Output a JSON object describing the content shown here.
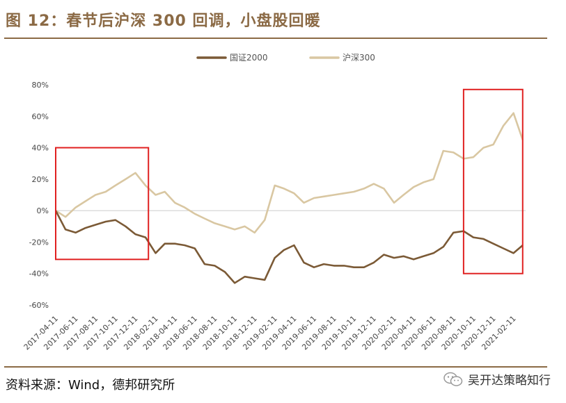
{
  "title": "图 12：春节后沪深 300 回调，小盘股回暖",
  "source": "资料来源：Wind，德邦研究所",
  "watermark": "吴开达策略知行",
  "watermark_icon": "wechat-icon",
  "colors": {
    "title": "#8b6a45",
    "rule": "#8b6a45",
    "gz2000": "#7b5a36",
    "hs300": "#d9c7a2",
    "highlight": "#e02020",
    "zero_line": "#cccccc"
  },
  "chart_data": {
    "type": "line",
    "title": "",
    "xlabel": "",
    "ylabel": "",
    "ylim": [
      -60,
      80
    ],
    "y_ticks": [
      80,
      60,
      40,
      20,
      0,
      -20,
      -40,
      -60
    ],
    "y_tick_labels": [
      "80%",
      "60%",
      "40%",
      "20%",
      "0%",
      "-20%",
      "-40%",
      "-60%"
    ],
    "x_tick_labels": [
      "2017-04-11",
      "2017-06-11",
      "2017-08-11",
      "2017-10-11",
      "2017-12-11",
      "2018-02-11",
      "2018-04-11",
      "2018-06-11",
      "2018-08-11",
      "2018-10-11",
      "2018-12-11",
      "2019-02-11",
      "2019-04-11",
      "2019-06-11",
      "2019-08-11",
      "2019-10-11",
      "2019-12-11",
      "2020-02-11",
      "2020-04-11",
      "2020-06-11",
      "2020-08-11",
      "2020-10-11",
      "2020-12-11",
      "2021-02-11"
    ],
    "legend_position": "top-center",
    "grid": false,
    "series": [
      {
        "name": "国证2000",
        "x": [
          "2017-04-11",
          "2017-05-11",
          "2017-06-11",
          "2017-07-11",
          "2017-08-11",
          "2017-09-11",
          "2017-10-11",
          "2017-11-11",
          "2017-12-11",
          "2018-01-11",
          "2018-02-11",
          "2018-03-11",
          "2018-04-11",
          "2018-05-11",
          "2018-06-11",
          "2018-07-11",
          "2018-08-11",
          "2018-09-11",
          "2018-10-11",
          "2018-11-11",
          "2018-12-11",
          "2019-01-11",
          "2019-02-11",
          "2019-03-11",
          "2019-04-11",
          "2019-05-11",
          "2019-06-11",
          "2019-07-11",
          "2019-08-11",
          "2019-09-11",
          "2019-10-11",
          "2019-11-11",
          "2019-12-11",
          "2020-01-11",
          "2020-02-11",
          "2020-03-11",
          "2020-04-11",
          "2020-05-11",
          "2020-06-11",
          "2020-07-11",
          "2020-08-11",
          "2020-09-11",
          "2020-10-11",
          "2020-11-11",
          "2020-12-11",
          "2021-01-11",
          "2021-02-11",
          "2021-03-11"
        ],
        "values": [
          0,
          -12,
          -14,
          -11,
          -9,
          -7,
          -6,
          -10,
          -15,
          -17,
          -27,
          -21,
          -21,
          -22,
          -24,
          -34,
          -35,
          -39,
          -46,
          -42,
          -43,
          -44,
          -30,
          -25,
          -22,
          -33,
          -36,
          -34,
          -35,
          -35,
          -36,
          -36,
          -33,
          -28,
          -30,
          -29,
          -31,
          -29,
          -27,
          -23,
          -14,
          -13,
          -17,
          -18,
          -21,
          -24,
          -27,
          -22
        ]
      },
      {
        "name": "沪深300",
        "x": [
          "2017-04-11",
          "2017-05-11",
          "2017-06-11",
          "2017-07-11",
          "2017-08-11",
          "2017-09-11",
          "2017-10-11",
          "2017-11-11",
          "2017-12-11",
          "2018-01-11",
          "2018-02-11",
          "2018-03-11",
          "2018-04-11",
          "2018-05-11",
          "2018-06-11",
          "2018-07-11",
          "2018-08-11",
          "2018-09-11",
          "2018-10-11",
          "2018-11-11",
          "2018-12-11",
          "2019-01-11",
          "2019-02-11",
          "2019-03-11",
          "2019-04-11",
          "2019-05-11",
          "2019-06-11",
          "2019-07-11",
          "2019-08-11",
          "2019-09-11",
          "2019-10-11",
          "2019-11-11",
          "2019-12-11",
          "2020-01-11",
          "2020-02-11",
          "2020-03-11",
          "2020-04-11",
          "2020-05-11",
          "2020-06-11",
          "2020-07-11",
          "2020-08-11",
          "2020-09-11",
          "2020-10-11",
          "2020-11-11",
          "2020-12-11",
          "2021-01-11",
          "2021-02-11",
          "2021-03-11"
        ],
        "values": [
          0,
          -4,
          2,
          6,
          10,
          12,
          16,
          20,
          24,
          16,
          10,
          12,
          5,
          2,
          -2,
          -5,
          -8,
          -10,
          -12,
          -10,
          -14,
          -6,
          16,
          14,
          11,
          5,
          8,
          9,
          10,
          11,
          12,
          14,
          17,
          14,
          5,
          10,
          15,
          18,
          20,
          38,
          37,
          33,
          34,
          40,
          42,
          54,
          62,
          45
        ]
      }
    ],
    "highlight_boxes": [
      {
        "x_start": "2017-04-11",
        "x_end": "2018-01-20",
        "y_top": 40,
        "y_bottom": -31
      },
      {
        "x_start": "2020-09-11",
        "x_end": "2021-03-11",
        "y_top": 77,
        "y_bottom": -40
      }
    ]
  }
}
